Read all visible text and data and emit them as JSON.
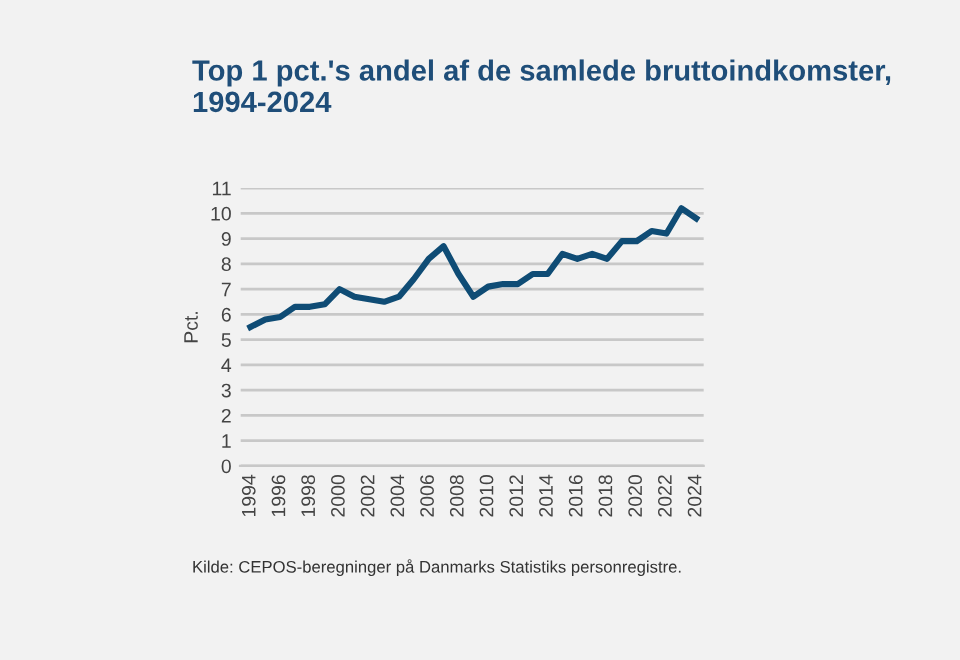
{
  "chart_data": {
    "type": "line",
    "title": "Top 1 pct.'s andel af de samlede bruttoindkomster,\n1994-2024",
    "ylabel": "Pct.",
    "x": [
      1994,
      1995,
      1996,
      1997,
      1998,
      1999,
      2000,
      2001,
      2002,
      2003,
      2004,
      2005,
      2006,
      2007,
      2008,
      2009,
      2010,
      2011,
      2012,
      2013,
      2014,
      2015,
      2016,
      2017,
      2018,
      2019,
      2020,
      2021,
      2022,
      2023,
      2024
    ],
    "series": [
      {
        "color": "#0f4c75",
        "values": [
          5.5,
          5.8,
          5.9,
          6.3,
          6.3,
          6.4,
          7.0,
          6.7,
          6.6,
          6.5,
          6.7,
          7.4,
          8.2,
          8.7,
          7.6,
          6.7,
          7.1,
          7.2,
          7.2,
          7.6,
          7.6,
          8.4,
          8.2,
          8.4,
          8.2,
          8.9,
          8.9,
          9.3,
          9.2,
          10.2,
          9.8
        ]
      }
    ],
    "xlim": [
      1993.3,
      2024.5
    ],
    "xticks": [
      1994,
      1996,
      1998,
      2000,
      2002,
      2004,
      2006,
      2008,
      2010,
      2012,
      2014,
      2016,
      2018,
      2020,
      2022,
      2024
    ],
    "ylim": [
      0,
      11
    ],
    "yticks": [
      0,
      1,
      2,
      3,
      4,
      5,
      6,
      7,
      8,
      9,
      10,
      11
    ],
    "grid": "y",
    "legend": false,
    "marker": "none",
    "line_style": "solid",
    "annotations": [
      "Kilde: CEPOS-beregninger på Danmarks Statistiks personregistre."
    ]
  }
}
